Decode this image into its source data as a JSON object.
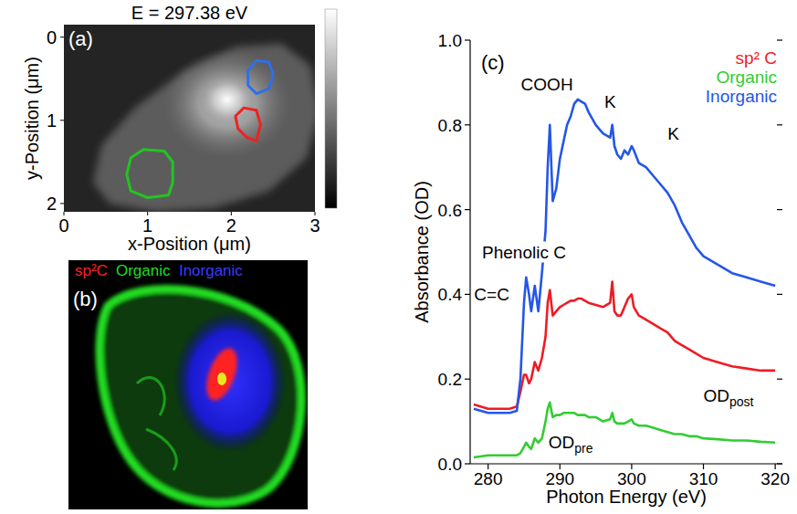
{
  "chart_data": [
    {
      "type": "image",
      "panel": "(a)",
      "title": "E = 297.38 eV",
      "x_label": "x-Position (μm)",
      "y_label": "y-Position (μm)",
      "xlim": [
        0,
        3
      ],
      "ylim": [
        2.1,
        -0.15
      ],
      "xticks": [
        0,
        1,
        2,
        3
      ],
      "yticks": [
        0,
        1,
        2
      ],
      "regions": [
        {
          "color": "#22c422",
          "x": [
            0.8,
            0.95,
            1.2,
            1.3,
            1.3,
            1.25,
            1.0,
            0.8,
            0.75
          ],
          "y": [
            1.45,
            1.35,
            1.37,
            1.5,
            1.75,
            1.9,
            1.93,
            1.85,
            1.65
          ]
        },
        {
          "color": "#ee2222",
          "x": [
            2.05,
            2.15,
            2.3,
            2.35,
            2.3,
            2.18,
            2.08
          ],
          "y": [
            0.95,
            0.85,
            0.88,
            1.05,
            1.25,
            1.2,
            1.1
          ]
        },
        {
          "color": "#2f6fe8",
          "x": [
            2.2,
            2.3,
            2.45,
            2.5,
            2.45,
            2.3,
            2.2
          ],
          "y": [
            0.4,
            0.28,
            0.3,
            0.45,
            0.62,
            0.68,
            0.58
          ]
        }
      ]
    },
    {
      "type": "image",
      "panel": "(b)",
      "labels": [
        {
          "text": "sp²C",
          "color": "#ff2020"
        },
        {
          "text": "Organic",
          "color": "#22dd22"
        },
        {
          "text": "Inorganic",
          "color": "#3a3aff"
        }
      ]
    },
    {
      "type": "line",
      "panel": "(c)",
      "x_label": "Photon Energy (eV)",
      "y_label": "Absorbance (OD)",
      "xlim": [
        277.5,
        321
      ],
      "ylim": [
        0,
        1
      ],
      "xticks": [
        280,
        290,
        300,
        310,
        320
      ],
      "yticks": [
        {
          "value": 0,
          "label": "0.0"
        },
        0.2,
        0.4,
        0.6,
        0.8,
        {
          "value": 1,
          "label": "1.0"
        }
      ],
      "legend": "top-right",
      "x": [
        278,
        280,
        282,
        283,
        284,
        284.5,
        285,
        285.3,
        285.7,
        286,
        286.5,
        287,
        287.5,
        288,
        288.3,
        288.6,
        289,
        289.5,
        290,
        290.5,
        291,
        291.5,
        292,
        292.5,
        293,
        293.5,
        294,
        295,
        296,
        297,
        297.3,
        297.6,
        298,
        298.5,
        299,
        299.5,
        300,
        300.3,
        301,
        302,
        303,
        304,
        305,
        306,
        307,
        308,
        309,
        310,
        312,
        314,
        316,
        318,
        320
      ],
      "series": [
        {
          "name": "sp² C",
          "color": "#ee1c24",
          "values": [
            0.14,
            0.13,
            0.13,
            0.13,
            0.135,
            0.17,
            0.21,
            0.21,
            0.19,
            0.2,
            0.24,
            0.22,
            0.25,
            0.3,
            0.38,
            0.41,
            0.35,
            0.36,
            0.37,
            0.375,
            0.38,
            0.385,
            0.385,
            0.39,
            0.39,
            0.385,
            0.38,
            0.375,
            0.37,
            0.38,
            0.43,
            0.36,
            0.35,
            0.35,
            0.37,
            0.39,
            0.4,
            0.37,
            0.35,
            0.34,
            0.33,
            0.32,
            0.31,
            0.29,
            0.28,
            0.27,
            0.26,
            0.25,
            0.24,
            0.23,
            0.225,
            0.22,
            0.22
          ]
        },
        {
          "name": "Organic",
          "color": "#33cc33",
          "values": [
            0.015,
            0.02,
            0.02,
            0.02,
            0.02,
            0.025,
            0.04,
            0.05,
            0.04,
            0.035,
            0.06,
            0.05,
            0.06,
            0.1,
            0.13,
            0.145,
            0.11,
            0.115,
            0.115,
            0.12,
            0.12,
            0.12,
            0.12,
            0.115,
            0.115,
            0.115,
            0.11,
            0.11,
            0.1,
            0.105,
            0.12,
            0.1,
            0.095,
            0.095,
            0.095,
            0.1,
            0.105,
            0.095,
            0.09,
            0.09,
            0.085,
            0.08,
            0.075,
            0.07,
            0.07,
            0.065,
            0.065,
            0.06,
            0.058,
            0.055,
            0.055,
            0.052,
            0.05
          ]
        },
        {
          "name": "Inorganic",
          "color": "#2456e8",
          "values": [
            0.13,
            0.12,
            0.12,
            0.12,
            0.125,
            0.2,
            0.38,
            0.44,
            0.4,
            0.36,
            0.42,
            0.36,
            0.45,
            0.55,
            0.7,
            0.8,
            0.62,
            0.65,
            0.72,
            0.76,
            0.8,
            0.82,
            0.85,
            0.86,
            0.855,
            0.85,
            0.83,
            0.8,
            0.78,
            0.77,
            0.8,
            0.75,
            0.73,
            0.72,
            0.74,
            0.73,
            0.75,
            0.74,
            0.71,
            0.7,
            0.68,
            0.66,
            0.64,
            0.61,
            0.57,
            0.54,
            0.51,
            0.49,
            0.47,
            0.45,
            0.44,
            0.43,
            0.42
          ]
        }
      ],
      "annotations": [
        {
          "text": "COOH",
          "x": 288.2,
          "y": 0.895
        },
        {
          "text": "K",
          "x": 297.0,
          "y": 0.855
        },
        {
          "text": "K",
          "x": 305.8,
          "y": 0.78
        },
        {
          "text": "Phenolic C",
          "x": 285.0,
          "y": 0.5
        },
        {
          "text": "C=C",
          "x": 280.5,
          "y": 0.4
        },
        {
          "text": "OD",
          "sub": "post",
          "x": 313.5,
          "y": 0.16
        },
        {
          "text": "OD",
          "sub": "pre",
          "x": 291.5,
          "y": 0.05
        }
      ]
    }
  ]
}
